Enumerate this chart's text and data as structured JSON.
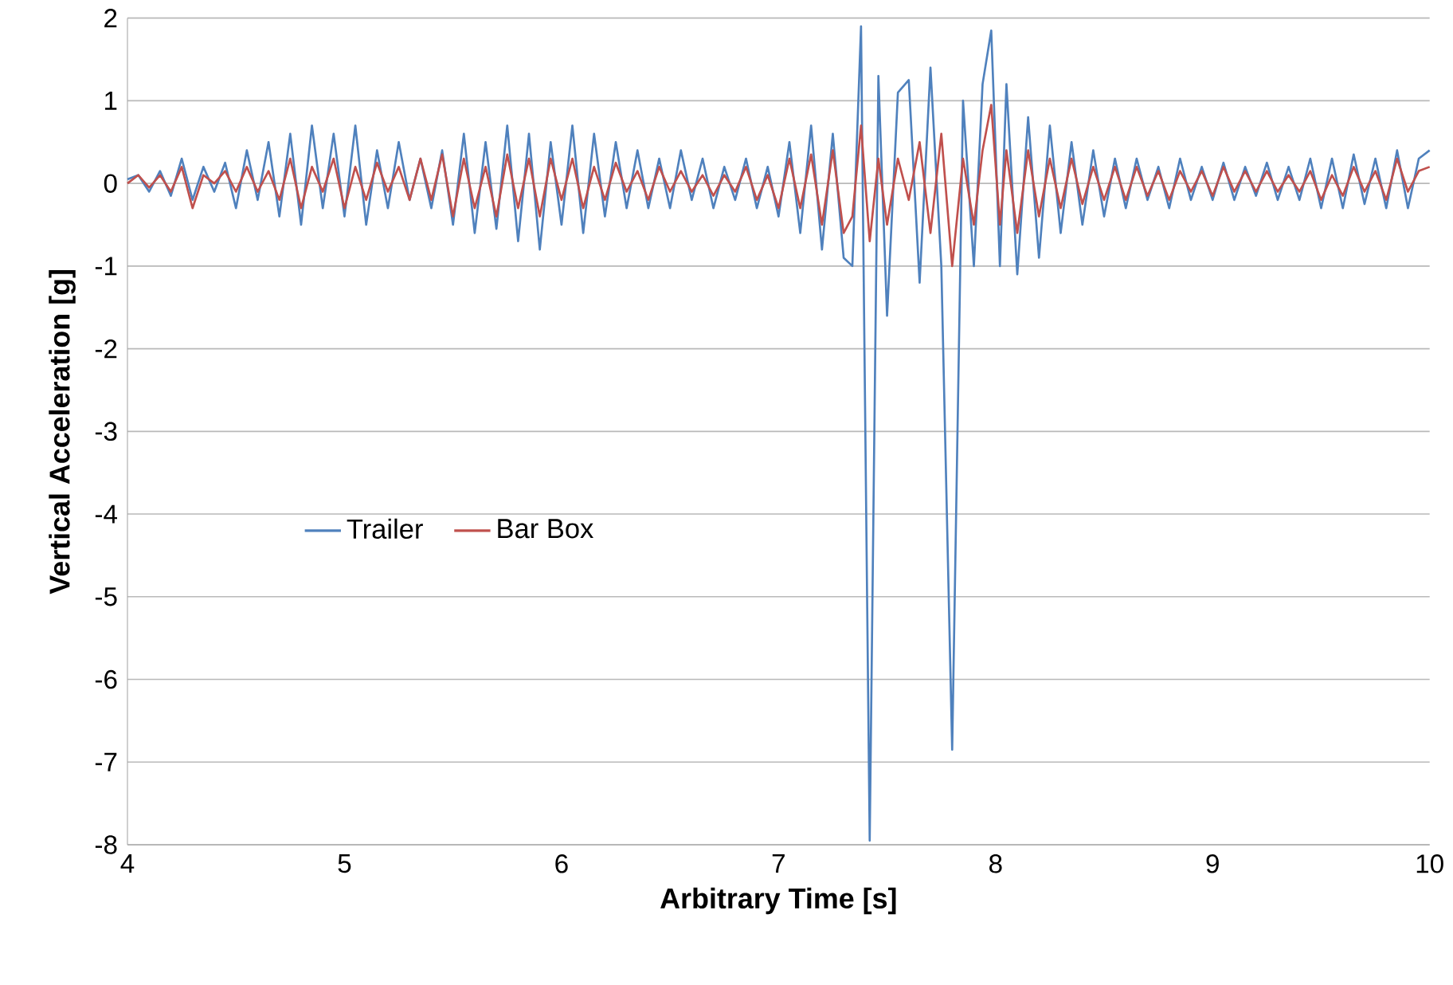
{
  "chart_data": {
    "type": "line",
    "xlabel": "Arbitrary Time [s]",
    "ylabel": "Vertical Acceleration [g]",
    "x": [
      4.0,
      4.05,
      4.1,
      4.15,
      4.2,
      4.25,
      4.3,
      4.35,
      4.4,
      4.45,
      4.5,
      4.55,
      4.6,
      4.65,
      4.7,
      4.75,
      4.8,
      4.85,
      4.9,
      4.95,
      5.0,
      5.05,
      5.1,
      5.15,
      5.2,
      5.25,
      5.3,
      5.35,
      5.4,
      5.45,
      5.5,
      5.55,
      5.6,
      5.65,
      5.7,
      5.75,
      5.8,
      5.85,
      5.9,
      5.95,
      6.0,
      6.05,
      6.1,
      6.15,
      6.2,
      6.25,
      6.3,
      6.35,
      6.4,
      6.45,
      6.5,
      6.55,
      6.6,
      6.65,
      6.7,
      6.75,
      6.8,
      6.85,
      6.9,
      6.95,
      7.0,
      7.05,
      7.1,
      7.15,
      7.2,
      7.25,
      7.3,
      7.34,
      7.38,
      7.42,
      7.46,
      7.5,
      7.55,
      7.6,
      7.65,
      7.7,
      7.75,
      7.8,
      7.85,
      7.9,
      7.94,
      7.98,
      8.02,
      8.05,
      8.1,
      8.15,
      8.2,
      8.25,
      8.3,
      8.35,
      8.4,
      8.45,
      8.5,
      8.55,
      8.6,
      8.65,
      8.7,
      8.75,
      8.8,
      8.85,
      8.9,
      8.95,
      9.0,
      9.05,
      9.1,
      9.15,
      9.2,
      9.25,
      9.3,
      9.35,
      9.4,
      9.45,
      9.5,
      9.55,
      9.6,
      9.65,
      9.7,
      9.75,
      9.8,
      9.85,
      9.9,
      9.95,
      10.0
    ],
    "series": [
      {
        "name": "Trailer",
        "color": "#4f81bd",
        "values": [
          0.05,
          0.1,
          -0.1,
          0.15,
          -0.15,
          0.3,
          -0.2,
          0.2,
          -0.1,
          0.25,
          -0.3,
          0.4,
          -0.2,
          0.5,
          -0.4,
          0.6,
          -0.5,
          0.7,
          -0.3,
          0.6,
          -0.4,
          0.7,
          -0.5,
          0.4,
          -0.3,
          0.5,
          -0.2,
          0.3,
          -0.3,
          0.4,
          -0.5,
          0.6,
          -0.6,
          0.5,
          -0.55,
          0.7,
          -0.7,
          0.6,
          -0.8,
          0.5,
          -0.5,
          0.7,
          -0.6,
          0.6,
          -0.4,
          0.5,
          -0.3,
          0.4,
          -0.3,
          0.3,
          -0.3,
          0.4,
          -0.2,
          0.3,
          -0.3,
          0.2,
          -0.2,
          0.3,
          -0.3,
          0.2,
          -0.4,
          0.5,
          -0.6,
          0.7,
          -0.8,
          0.6,
          -0.9,
          -1.0,
          1.9,
          -7.95,
          1.3,
          -1.6,
          1.1,
          1.25,
          -1.2,
          1.4,
          -1.0,
          -6.85,
          1.0,
          -1.0,
          1.2,
          1.85,
          -1.0,
          1.2,
          -1.1,
          0.8,
          -0.9,
          0.7,
          -0.6,
          0.5,
          -0.5,
          0.4,
          -0.4,
          0.3,
          -0.3,
          0.3,
          -0.2,
          0.2,
          -0.3,
          0.3,
          -0.2,
          0.2,
          -0.2,
          0.25,
          -0.2,
          0.2,
          -0.15,
          0.25,
          -0.2,
          0.2,
          -0.2,
          0.3,
          -0.3,
          0.3,
          -0.3,
          0.35,
          -0.25,
          0.3,
          -0.3,
          0.4,
          -0.3,
          0.3,
          0.4
        ]
      },
      {
        "name": "Bar Box",
        "color": "#c0504d",
        "values": [
          0.0,
          0.1,
          -0.05,
          0.1,
          -0.1,
          0.2,
          -0.3,
          0.1,
          0.0,
          0.15,
          -0.1,
          0.2,
          -0.1,
          0.15,
          -0.2,
          0.3,
          -0.3,
          0.2,
          -0.1,
          0.3,
          -0.3,
          0.2,
          -0.2,
          0.25,
          -0.1,
          0.2,
          -0.2,
          0.3,
          -0.2,
          0.35,
          -0.4,
          0.3,
          -0.3,
          0.2,
          -0.4,
          0.35,
          -0.3,
          0.3,
          -0.4,
          0.3,
          -0.2,
          0.3,
          -0.3,
          0.2,
          -0.2,
          0.25,
          -0.1,
          0.15,
          -0.2,
          0.2,
          -0.1,
          0.15,
          -0.1,
          0.1,
          -0.15,
          0.1,
          -0.1,
          0.2,
          -0.2,
          0.1,
          -0.3,
          0.3,
          -0.3,
          0.35,
          -0.5,
          0.4,
          -0.6,
          -0.4,
          0.7,
          -0.7,
          0.3,
          -0.5,
          0.3,
          -0.2,
          0.5,
          -0.6,
          0.6,
          -1.0,
          0.3,
          -0.5,
          0.4,
          0.95,
          -0.5,
          0.4,
          -0.6,
          0.4,
          -0.4,
          0.3,
          -0.3,
          0.3,
          -0.25,
          0.2,
          -0.2,
          0.2,
          -0.2,
          0.2,
          -0.15,
          0.15,
          -0.2,
          0.15,
          -0.1,
          0.15,
          -0.15,
          0.2,
          -0.1,
          0.15,
          -0.1,
          0.15,
          -0.1,
          0.1,
          -0.1,
          0.15,
          -0.2,
          0.1,
          -0.15,
          0.2,
          -0.1,
          0.15,
          -0.2,
          0.3,
          -0.1,
          0.15,
          0.2
        ]
      }
    ],
    "xlim": [
      4,
      10
    ],
    "ylim": [
      -8,
      2
    ],
    "xticks": [
      4,
      5,
      6,
      7,
      8,
      9,
      10
    ],
    "yticks": [
      -8,
      -7,
      -6,
      -5,
      -4,
      -3,
      -2,
      -1,
      0,
      1,
      2
    ],
    "grid": "y",
    "legend": "left",
    "marker": "none",
    "line_style": "solid"
  }
}
